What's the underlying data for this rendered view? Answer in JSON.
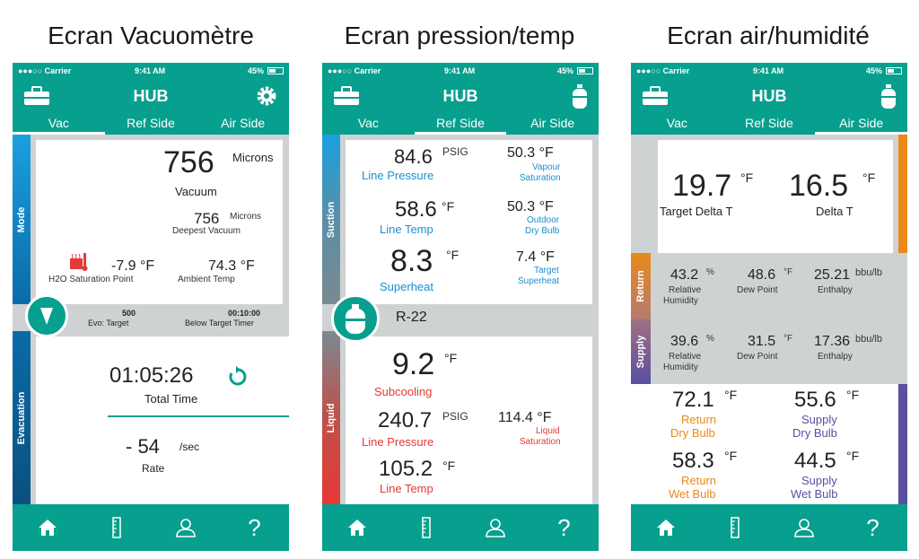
{
  "captions": [
    "Ecran Vacuomètre",
    "Ecran pression/temp",
    "Ecran air/humidité"
  ],
  "status": {
    "carrier": "●●●○○ Carrier",
    "time": "9:41 AM",
    "battery": "45%"
  },
  "app_title": "HUB",
  "tabs": [
    "Vac",
    "Ref Side",
    "Air Side"
  ],
  "nav_icons": [
    "home-icon",
    "ruler-icon",
    "user-icon",
    "help-icon"
  ],
  "nav_help": "?",
  "colors": {
    "teal": "#079f8e",
    "blue": "#1b8fd2",
    "red": "#e53935",
    "orange": "#e88a1a",
    "purple": "#5a4fa0"
  },
  "vac": {
    "mode_label": "Mode",
    "evac_label": "Evacuation",
    "vacuum_value": "756",
    "vacuum_unit": "Microns",
    "vacuum_label": "Vacuum",
    "deepest_value": "756",
    "deepest_unit": "Microns",
    "deepest_label": "Deepest Vacuum",
    "h2o_value": "-7.9 °F",
    "h2o_label": "H2O Saturation Point",
    "ambient_value": "74.3 °F",
    "ambient_label": "Ambient Temp",
    "evo_value": "500",
    "evo_label": "Evo: Target",
    "timer_value": "00:10:00",
    "timer_label": "Below Target Timer",
    "total_time": "01:05:26",
    "total_time_label": "Total Time",
    "rate_value": "- 54",
    "rate_unit": "/sec",
    "rate_label": "Rate"
  },
  "ref": {
    "suction_label": "Suction",
    "liquid_label": "Liquid",
    "refrigerant": "R-22",
    "line_pressure": "84.6",
    "line_pressure_unit": "PSIG",
    "line_pressure_label": "Line Pressure",
    "vapour_sat": "50.3 °F",
    "vapour_sat_label1": "Vapour",
    "vapour_sat_label2": "Saturation",
    "line_temp": "58.6",
    "line_temp_unit": "°F",
    "line_temp_label": "Line Temp",
    "outdoor_db": "50.3 °F",
    "outdoor_db_label1": "Outdoor",
    "outdoor_db_label2": "Dry Bulb",
    "superheat": "8.3",
    "superheat_unit": "°F",
    "superheat_label": "Superheat",
    "target_sh": "7.4 °F",
    "target_sh_label1": "Target",
    "target_sh_label2": "Superheat",
    "subcooling": "9.2",
    "subcooling_unit": "°F",
    "subcooling_label": "Subcooling",
    "liq_pressure": "240.7",
    "liq_pressure_unit": "PSIG",
    "liq_pressure_label": "Line Pressure",
    "liq_sat": "114.4 °F",
    "liq_sat_label1": "Liquid",
    "liq_sat_label2": "Saturation",
    "liq_temp": "105.2",
    "liq_temp_unit": "°F",
    "liq_temp_label": "Line Temp"
  },
  "air": {
    "return_label": "Return",
    "supply_label": "Supply",
    "target_delta": "19.7",
    "target_delta_unit": "°F",
    "target_delta_label": "Target Delta T",
    "delta": "16.5",
    "delta_unit": "°F",
    "delta_label": "Delta T",
    "ret_rh": "43.2",
    "ret_rh_unit": "%",
    "ret_dp": "48.6",
    "ret_dp_unit": "°F",
    "ret_enth": "25.21",
    "ret_enth_unit": "bbu/lb",
    "sup_rh": "39.6",
    "sup_rh_unit": "%",
    "sup_dp": "31.5",
    "sup_dp_unit": "°F",
    "sup_enth": "17.36",
    "sup_enth_unit": "bbu/lb",
    "rh_label1": "Relative",
    "rh_label2": "Humidity",
    "dp_label": "Dew Point",
    "enth_label": "Enthalpy",
    "ret_db": "72.1",
    "ret_db_unit": "°F",
    "ret_db_l1": "Return",
    "ret_db_l2": "Dry Bulb",
    "sup_db": "55.6",
    "sup_db_unit": "°F",
    "sup_db_l1": "Supply",
    "sup_db_l2": "Dry Bulb",
    "ret_wb": "58.3",
    "ret_wb_unit": "°F",
    "ret_wb_l1": "Return",
    "ret_wb_l2": "Wet Bulb",
    "sup_wb": "44.5",
    "sup_wb_unit": "°F",
    "sup_wb_l1": "Supply",
    "sup_wb_l2": "Wet Bulb"
  }
}
